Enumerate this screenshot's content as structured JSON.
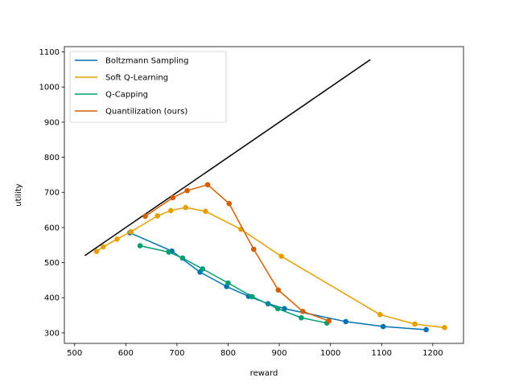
{
  "chart_data": {
    "type": "line",
    "xlabel": "reward",
    "ylabel": "utility",
    "xlim": [
      480,
      1260
    ],
    "ylim": [
      270,
      1115
    ],
    "xticks": [
      500,
      600,
      700,
      800,
      900,
      1000,
      1100,
      1200
    ],
    "yticks": [
      300,
      400,
      500,
      600,
      700,
      800,
      900,
      1000,
      1100
    ],
    "grid": false,
    "legend_position": "top-left",
    "reference_line": {
      "color": "#000000",
      "points": [
        [
          520,
          520
        ],
        [
          1078,
          1078
        ]
      ]
    },
    "series": [
      {
        "name": "Boltzmann Sampling",
        "color": "#0072B2",
        "points": [
          [
            608,
            585
          ],
          [
            690,
            533
          ],
          [
            745,
            473
          ],
          [
            797,
            432
          ],
          [
            840,
            404
          ],
          [
            878,
            383
          ],
          [
            910,
            369
          ],
          [
            1030,
            332
          ],
          [
            1103,
            318
          ],
          [
            1187,
            309
          ]
        ]
      },
      {
        "name": "Soft Q-Learning",
        "color": "#E69F00",
        "points": [
          [
            543,
            532
          ],
          [
            556,
            545
          ],
          [
            583,
            567
          ],
          [
            610,
            588
          ],
          [
            662,
            633
          ],
          [
            688,
            648
          ],
          [
            717,
            657
          ],
          [
            756,
            646
          ],
          [
            825,
            595
          ],
          [
            904,
            518
          ],
          [
            1097,
            352
          ],
          [
            1165,
            325
          ],
          [
            1223,
            315
          ]
        ]
      },
      {
        "name": "Q-Capping",
        "color": "#009E73",
        "points": [
          [
            628,
            548
          ],
          [
            684,
            530
          ],
          [
            711,
            513
          ],
          [
            750,
            482
          ],
          [
            800,
            442
          ],
          [
            847,
            403
          ],
          [
            897,
            369
          ],
          [
            943,
            343
          ],
          [
            993,
            328
          ]
        ]
      },
      {
        "name": "Quantilization (ours)",
        "color": "#D55E00",
        "points": [
          [
            638,
            632
          ],
          [
            692,
            685
          ],
          [
            720,
            705
          ],
          [
            760,
            722
          ],
          [
            802,
            668
          ],
          [
            850,
            538
          ],
          [
            898,
            422
          ],
          [
            946,
            361
          ],
          [
            997,
            334
          ]
        ]
      }
    ]
  }
}
